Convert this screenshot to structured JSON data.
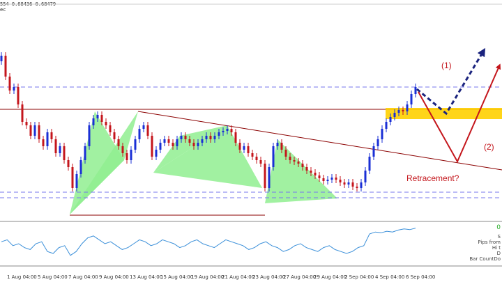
{
  "header": {
    "prices": "554 0.68436 0.68479",
    "line2": "ec"
  },
  "colors": {
    "bull": "#1a2fd6",
    "bear": "#c4161c",
    "harmonic_fill": "#90ee90",
    "zone_fill": "#ffd000",
    "dashed_level": "#7777ee",
    "resistance": "#8b0000",
    "navy_arrow": "#1a237e",
    "red_arrow": "#c4161c",
    "oscillator": "#3a8fd9"
  },
  "annotations": {
    "label_1": "(1)",
    "label_2": "(2)",
    "retracement": "Retracement?"
  },
  "indicator_panel": {
    "value": "0",
    "labels": [
      "S",
      "Pips from",
      "Hi t",
      "D",
      "Bar CountDo"
    ]
  },
  "chart_data": {
    "type": "candlestick",
    "x_ticks": [
      "1 Aug 04:00",
      "5 Aug 04:00",
      "7 Aug 04:00",
      "9 Aug 04:00",
      "13 Aug 04:00",
      "15 Aug 04:00",
      "19 Aug 04:00",
      "21 Aug 04:00",
      "23 Aug 04:00",
      "27 Aug 04:00",
      "29 Aug 04:00",
      "2 Sep 04:00",
      "4 Sep 04:00",
      "6 Sep 04:00"
    ],
    "grid": false,
    "oscillator": [
      0.55,
      0.6,
      0.45,
      0.5,
      0.4,
      0.35,
      0.5,
      0.55,
      0.3,
      0.25,
      0.4,
      0.45,
      0.2,
      0.3,
      0.5,
      0.65,
      0.7,
      0.6,
      0.5,
      0.55,
      0.45,
      0.35,
      0.4,
      0.5,
      0.6,
      0.55,
      0.45,
      0.5,
      0.6,
      0.55,
      0.5,
      0.4,
      0.45,
      0.55,
      0.6,
      0.5,
      0.45,
      0.4,
      0.5,
      0.6,
      0.55,
      0.5,
      0.45,
      0.35,
      0.4,
      0.5,
      0.55,
      0.45,
      0.4,
      0.3,
      0.35,
      0.45,
      0.5,
      0.4,
      0.35,
      0.3,
      0.4,
      0.45,
      0.35,
      0.3,
      0.25,
      0.3,
      0.4,
      0.45,
      0.75,
      0.8,
      0.78,
      0.82,
      0.8,
      0.85,
      0.88,
      0.86,
      0.9
    ]
  }
}
